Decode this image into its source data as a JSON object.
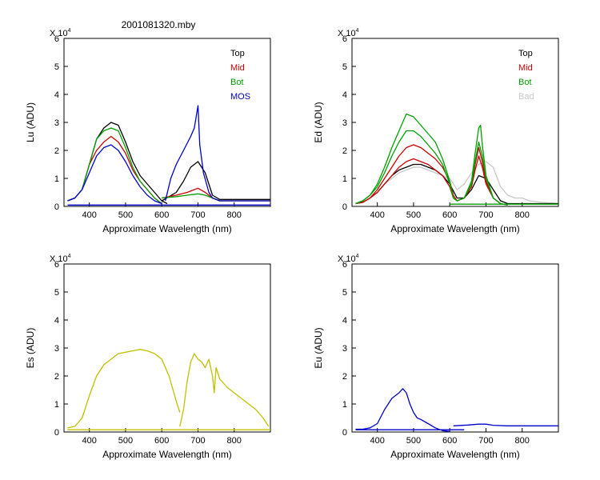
{
  "figure": {
    "title": "2001081320.mby",
    "colors": {
      "Top": "#000000",
      "Mid": "#cc0000",
      "Bot": "#00a000",
      "MOS": "#0000cc",
      "Bad": "#c8c8c8",
      "Es": "#c0c000"
    }
  },
  "chart_data": [
    {
      "type": "line",
      "panel": "top-left",
      "ylabel": "Lu (ADU)",
      "xlabel": "Approximate Wavelength (nm)",
      "exponent_label": "X 10",
      "exponent": "4",
      "xlim": [
        330,
        900
      ],
      "ylim": [
        0,
        6
      ],
      "xticks": [
        400,
        500,
        600,
        700,
        800
      ],
      "yticks": [
        0,
        1,
        2,
        3,
        4,
        5,
        6
      ],
      "legend": [
        "Top",
        "Mid",
        "Bot",
        "MOS"
      ],
      "legend_position": "top-right",
      "series": [
        {
          "name": "Top",
          "color": "#000000",
          "x": [
            340,
            360,
            380,
            400,
            420,
            440,
            460,
            480,
            500,
            520,
            540,
            560,
            580,
            600,
            615
          ],
          "y": [
            0.2,
            0.3,
            0.6,
            1.5,
            2.4,
            2.8,
            3.0,
            2.9,
            2.3,
            1.6,
            1.1,
            0.8,
            0.5,
            0.2,
            0.1
          ]
        },
        {
          "name": "Top",
          "color": "#000000",
          "x": [
            600,
            620,
            640,
            660,
            680,
            700,
            720,
            740,
            760,
            900
          ],
          "y": [
            0.2,
            0.35,
            0.5,
            0.9,
            1.4,
            1.6,
            1.2,
            0.4,
            0.25,
            0.25
          ]
        },
        {
          "name": "Mid",
          "color": "#cc0000",
          "x": [
            340,
            360,
            380,
            400,
            420,
            440,
            460,
            480,
            500,
            520,
            540,
            560,
            580,
            600
          ],
          "y": [
            0.2,
            0.3,
            0.6,
            1.5,
            2.0,
            2.3,
            2.5,
            2.3,
            1.9,
            1.3,
            0.9,
            0.6,
            0.3,
            0.1
          ]
        },
        {
          "name": "Mid",
          "color": "#cc0000",
          "x": [
            600,
            640,
            670,
            690,
            700,
            720,
            740,
            760,
            900
          ],
          "y": [
            0.3,
            0.4,
            0.5,
            0.6,
            0.65,
            0.5,
            0.3,
            0.2,
            0.2
          ]
        },
        {
          "name": "Bot",
          "color": "#00a000",
          "x": [
            340,
            360,
            380,
            400,
            420,
            440,
            460,
            480,
            500,
            520,
            540,
            560,
            580,
            600
          ],
          "y": [
            0.2,
            0.3,
            0.6,
            1.5,
            2.4,
            2.7,
            2.8,
            2.7,
            2.1,
            1.4,
            0.9,
            0.6,
            0.3,
            0.1
          ]
        },
        {
          "name": "Bot",
          "color": "#00a000",
          "x": [
            600,
            640,
            670,
            700,
            720,
            740,
            760,
            900
          ],
          "y": [
            0.3,
            0.35,
            0.4,
            0.45,
            0.4,
            0.3,
            0.2,
            0.2
          ]
        },
        {
          "name": "MOS",
          "color": "#0000cc",
          "x": [
            340,
            360,
            380,
            400,
            420,
            440,
            460,
            480,
            500,
            520,
            540,
            560,
            580,
            600
          ],
          "y": [
            0.2,
            0.3,
            0.6,
            1.2,
            1.8,
            2.1,
            2.2,
            2.0,
            1.6,
            1.1,
            0.7,
            0.4,
            0.2,
            0.1
          ]
        },
        {
          "name": "MOS",
          "color": "#0000cc",
          "x": [
            610,
            625,
            640,
            660,
            680,
            690,
            700,
            705,
            715,
            730,
            740,
            760,
            900
          ],
          "y": [
            0.2,
            1.0,
            1.5,
            2.0,
            2.5,
            2.8,
            3.6,
            2.2,
            1.2,
            0.5,
            0.3,
            0.2,
            0.2
          ]
        },
        {
          "name": "baseline",
          "color": "#0000cc",
          "x": [
            340,
            900
          ],
          "y": [
            0.05,
            0.05
          ]
        }
      ]
    },
    {
      "type": "line",
      "panel": "top-right",
      "ylabel": "Ed (ADU)",
      "xlabel": "Approximate Wavelength (nm)",
      "exponent_label": "X 10",
      "exponent": "4",
      "xlim": [
        330,
        900
      ],
      "ylim": [
        0,
        6
      ],
      "xticks": [
        400,
        500,
        600,
        700,
        800
      ],
      "yticks": [
        0,
        1,
        2,
        3,
        4,
        5,
        6
      ],
      "legend": [
        "Top",
        "Mid",
        "Bot",
        "Bad"
      ],
      "legend_position": "top-right",
      "series": [
        {
          "name": "Bad",
          "color": "#c8c8c8",
          "x": [
            340,
            360,
            380,
            400,
            420,
            440,
            460,
            480,
            500,
            520,
            540,
            560,
            580,
            600,
            620,
            640,
            660,
            680,
            700,
            720,
            740,
            760,
            780,
            800,
            820,
            850,
            900
          ],
          "y": [
            0.1,
            0.15,
            0.3,
            0.5,
            0.8,
            1.0,
            1.2,
            1.3,
            1.4,
            1.4,
            1.3,
            1.2,
            1.1,
            1.0,
            0.6,
            0.8,
            1.2,
            1.5,
            1.6,
            1.4,
            0.7,
            0.4,
            0.3,
            0.3,
            0.2,
            0.15,
            0.1
          ]
        },
        {
          "name": "Top",
          "color": "#000000",
          "x": [
            340,
            360,
            380,
            400,
            420,
            440,
            460,
            480,
            500,
            520,
            540,
            560,
            580,
            600,
            620,
            640,
            660,
            680,
            700,
            720,
            740,
            760,
            800,
            900
          ],
          "y": [
            0.1,
            0.15,
            0.3,
            0.5,
            0.8,
            1.1,
            1.3,
            1.4,
            1.5,
            1.5,
            1.4,
            1.3,
            1.1,
            0.8,
            0.3,
            0.3,
            0.6,
            1.1,
            1.0,
            0.6,
            0.2,
            0.1,
            0.1,
            0.1
          ]
        },
        {
          "name": "Mid",
          "color": "#cc0000",
          "x": [
            340,
            360,
            380,
            400,
            420,
            440,
            460,
            480,
            500,
            520,
            540,
            560,
            580,
            600,
            610,
            620,
            640,
            660,
            670,
            680,
            690,
            700,
            720,
            740,
            760
          ],
          "y": [
            0.1,
            0.15,
            0.3,
            0.6,
            1.0,
            1.4,
            1.8,
            2.1,
            2.2,
            2.1,
            1.9,
            1.7,
            1.4,
            0.9,
            0.4,
            0.2,
            0.3,
            0.8,
            1.5,
            2.1,
            1.6,
            0.9,
            0.3,
            0.1,
            0.05
          ]
        },
        {
          "name": "Mid",
          "color": "#cc0000",
          "x": [
            340,
            360,
            380,
            400,
            420,
            440,
            460,
            480,
            500,
            520,
            540,
            560,
            580,
            600,
            610,
            620,
            640,
            660,
            670,
            680,
            690,
            700,
            720,
            740,
            760
          ],
          "y": [
            0.1,
            0.15,
            0.3,
            0.5,
            0.8,
            1.1,
            1.4,
            1.6,
            1.7,
            1.6,
            1.5,
            1.3,
            1.1,
            0.7,
            0.3,
            0.2,
            0.3,
            0.7,
            1.3,
            1.8,
            1.4,
            0.8,
            0.3,
            0.1,
            0.05
          ]
        },
        {
          "name": "Bot",
          "color": "#00a000",
          "x": [
            340,
            360,
            380,
            400,
            420,
            440,
            460,
            480,
            500,
            520,
            540,
            560,
            580,
            600,
            610,
            620,
            640,
            660,
            670,
            680,
            685,
            690,
            700,
            720,
            740,
            760
          ],
          "y": [
            0.1,
            0.2,
            0.4,
            0.8,
            1.4,
            2.1,
            2.7,
            3.3,
            3.2,
            2.9,
            2.6,
            2.3,
            1.7,
            0.9,
            0.3,
            0.2,
            0.3,
            0.9,
            1.9,
            2.8,
            2.9,
            2.2,
            1.1,
            0.3,
            0.1,
            0.05
          ]
        },
        {
          "name": "Bot",
          "color": "#00a000",
          "x": [
            340,
            360,
            380,
            400,
            420,
            440,
            460,
            480,
            500,
            520,
            540,
            560,
            580,
            600,
            610,
            620,
            640,
            660,
            670,
            680,
            690,
            700,
            720,
            740,
            760
          ],
          "y": [
            0.1,
            0.2,
            0.4,
            0.7,
            1.2,
            1.8,
            2.3,
            2.7,
            2.7,
            2.5,
            2.2,
            1.9,
            1.5,
            0.8,
            0.3,
            0.2,
            0.3,
            0.8,
            1.6,
            2.3,
            1.8,
            1.0,
            0.3,
            0.1,
            0.05
          ]
        },
        {
          "name": "baseline",
          "color": "#00a000",
          "x": [
            600,
            900
          ],
          "y": [
            0.08,
            0.08
          ]
        }
      ]
    },
    {
      "type": "line",
      "panel": "bottom-left",
      "ylabel": "Es (ADU)",
      "xlabel": "Approximate Wavelength (nm)",
      "exponent_label": "X 10",
      "exponent": "4",
      "xlim": [
        330,
        900
      ],
      "ylim": [
        0,
        6
      ],
      "xticks": [
        400,
        500,
        600,
        700,
        800
      ],
      "yticks": [
        0,
        1,
        2,
        3,
        4,
        5,
        6
      ],
      "series": [
        {
          "name": "Es",
          "color": "#c0c000",
          "x": [
            340,
            360,
            380,
            390,
            400,
            420,
            440,
            460,
            480,
            500,
            520,
            540,
            560,
            580,
            600,
            620,
            640,
            650
          ],
          "y": [
            0.15,
            0.2,
            0.5,
            0.9,
            1.3,
            2.0,
            2.4,
            2.6,
            2.8,
            2.85,
            2.9,
            2.95,
            2.9,
            2.8,
            2.6,
            2.0,
            1.1,
            0.7
          ]
        },
        {
          "name": "Es",
          "color": "#c0c000",
          "x": [
            650,
            660,
            670,
            680,
            690,
            700,
            710,
            720,
            730,
            740,
            745,
            750,
            760,
            780,
            800,
            820,
            840,
            860,
            880,
            895
          ],
          "y": [
            0.2,
            0.8,
            1.8,
            2.5,
            2.8,
            2.6,
            2.5,
            2.3,
            2.6,
            2.0,
            1.4,
            2.3,
            1.9,
            1.6,
            1.4,
            1.2,
            1.0,
            0.8,
            0.5,
            0.2
          ]
        },
        {
          "name": "baseline",
          "color": "#c0c000",
          "x": [
            340,
            900
          ],
          "y": [
            0.08,
            0.08
          ]
        }
      ]
    },
    {
      "type": "line",
      "panel": "bottom-right",
      "ylabel": "Eu (ADU)",
      "xlabel": "Approximate Wavelength (nm)",
      "exponent_label": "X 10",
      "exponent": "4",
      "xlim": [
        330,
        900
      ],
      "ylim": [
        0,
        6
      ],
      "xticks": [
        400,
        500,
        600,
        700,
        800
      ],
      "yticks": [
        0,
        1,
        2,
        3,
        4,
        5,
        6
      ],
      "series": [
        {
          "name": "Eu",
          "color": "#0000cc",
          "x": [
            340,
            360,
            380,
            400,
            420,
            440,
            460,
            470,
            480,
            490,
            500,
            510,
            520,
            540,
            560,
            580,
            600
          ],
          "y": [
            0.1,
            0.1,
            0.15,
            0.3,
            0.8,
            1.2,
            1.4,
            1.55,
            1.4,
            1.0,
            0.7,
            0.5,
            0.45,
            0.3,
            0.15,
            0.05,
            0.02
          ]
        },
        {
          "name": "Eu",
          "color": "#0000cc",
          "x": [
            610,
            650,
            680,
            700,
            720,
            760,
            800,
            850,
            900
          ],
          "y": [
            0.22,
            0.25,
            0.28,
            0.28,
            0.24,
            0.22,
            0.22,
            0.22,
            0.22
          ]
        },
        {
          "name": "baseline",
          "color": "#0000cc",
          "x": [
            340,
            640
          ],
          "y": [
            0.08,
            0.08
          ]
        }
      ]
    }
  ]
}
